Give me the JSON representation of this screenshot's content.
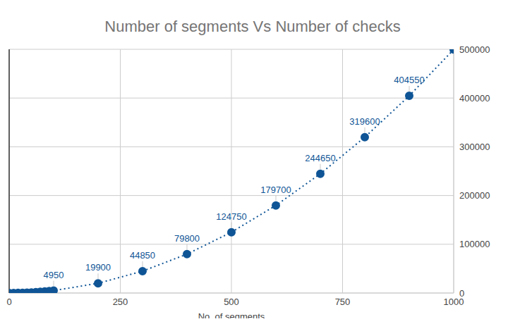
{
  "chart_data": {
    "type": "line",
    "title": "Number of segments Vs Number of checks",
    "x_label": "No. of segments",
    "x": [
      0,
      10,
      20,
      30,
      40,
      50,
      60,
      70,
      80,
      90,
      100,
      200,
      300,
      400,
      500,
      600,
      700,
      800,
      900,
      1000
    ],
    "values": [
      0,
      45,
      190,
      435,
      780,
      1225,
      1770,
      2415,
      3160,
      4005,
      4950,
      19900,
      44850,
      79800,
      124750,
      179700,
      244650,
      319600,
      404550,
      499500
    ],
    "value_labels": [
      null,
      null,
      null,
      null,
      null,
      null,
      null,
      null,
      null,
      null,
      "4950",
      "19900",
      "44850",
      "79800",
      "124750",
      "179700",
      "244650",
      "319600",
      "404550",
      null
    ],
    "color": "#0f5596",
    "marker": "circle",
    "line_style": "dotted",
    "xlim": [
      0,
      1000
    ],
    "xticks": [
      0,
      250,
      500,
      750,
      1000
    ],
    "ylim": [
      0,
      500000
    ],
    "yticks": [
      0,
      100000,
      200000,
      300000,
      400000,
      500000
    ],
    "grid": true,
    "data_labels": true
  }
}
